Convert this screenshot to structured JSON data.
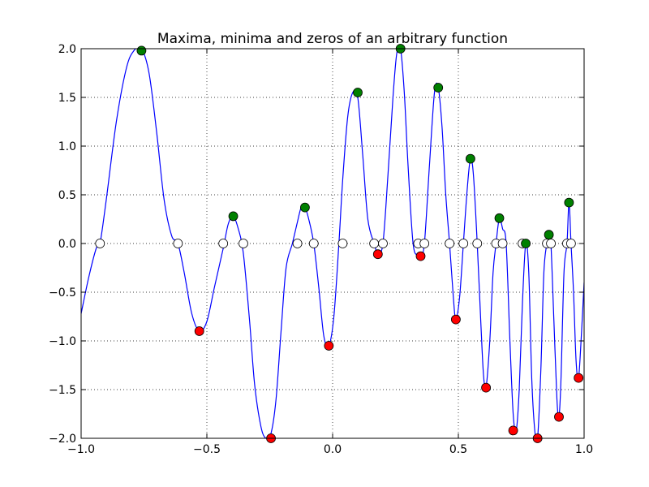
{
  "chart_data": {
    "type": "line",
    "title": "Maxima, minima and zeros of an arbitrary function",
    "xlabel": "",
    "ylabel": "",
    "xlim": [
      -1.0,
      1.0
    ],
    "ylim": [
      -2.0,
      2.0
    ],
    "grid": true,
    "xticks": [
      -1.0,
      -0.5,
      0.0,
      0.5,
      1.0
    ],
    "xtick_labels": [
      "−1.0",
      "−0.5",
      "0.0",
      "0.5",
      "1.0"
    ],
    "yticks": [
      -2.0,
      -1.5,
      -1.0,
      -0.5,
      0.0,
      0.5,
      1.0,
      1.5,
      2.0
    ],
    "ytick_labels": [
      "−2.0",
      "−1.5",
      "−1.0",
      "−0.5",
      "0.0",
      "0.5",
      "1.0",
      "1.5",
      "2.0"
    ],
    "colors": {
      "line": "#0000ff",
      "maxima": "#008000",
      "minima": "#ff0000",
      "zeros": "#ffffff",
      "grid": "#000000",
      "frame": "#000000"
    },
    "series": [
      {
        "x": [
          -1.0,
          -0.97,
          -0.94,
          -0.925,
          -0.9,
          -0.86,
          -0.82,
          -0.79,
          -0.76,
          -0.73,
          -0.7,
          -0.67,
          -0.64,
          -0.615,
          -0.59,
          -0.56,
          -0.53,
          -0.5,
          -0.47,
          -0.435,
          -0.415,
          -0.395,
          -0.375,
          -0.355,
          -0.33,
          -0.31,
          -0.285,
          -0.265,
          -0.245,
          -0.225,
          -0.205,
          -0.185,
          -0.16,
          -0.14,
          -0.125,
          -0.11,
          -0.095,
          -0.075,
          -0.055,
          -0.035,
          -0.015,
          0.005,
          0.025,
          0.04,
          0.06,
          0.08,
          0.1,
          0.12,
          0.14,
          0.165,
          0.18,
          0.2,
          0.22,
          0.24,
          0.255,
          0.27,
          0.285,
          0.3,
          0.32,
          0.34,
          0.35,
          0.365,
          0.385,
          0.405,
          0.42,
          0.435,
          0.45,
          0.465,
          0.48,
          0.49,
          0.505,
          0.52,
          0.535,
          0.548,
          0.56,
          0.575,
          0.59,
          0.6,
          0.61,
          0.625,
          0.638,
          0.65,
          0.663,
          0.676,
          0.69,
          0.705,
          0.718,
          0.73,
          0.742,
          0.755,
          0.768,
          0.78,
          0.792,
          0.805,
          0.815,
          0.828,
          0.84,
          0.852,
          0.86,
          0.868,
          0.88,
          0.892,
          0.9,
          0.908,
          0.92,
          0.932,
          0.94,
          0.948,
          0.958,
          0.968,
          0.978,
          0.99,
          1.0
        ],
        "y": [
          -0.72,
          -0.35,
          -0.05,
          0.0,
          0.45,
          1.25,
          1.8,
          1.98,
          2.0,
          1.75,
          1.15,
          0.45,
          0.08,
          0.0,
          -0.3,
          -0.72,
          -0.9,
          -0.8,
          -0.45,
          -0.05,
          0.2,
          0.28,
          0.15,
          -0.1,
          -0.8,
          -1.45,
          -1.88,
          -2.0,
          -1.95,
          -1.6,
          -0.9,
          -0.25,
          0.0,
          0.22,
          0.37,
          0.37,
          0.25,
          0.0,
          -0.45,
          -0.95,
          -1.05,
          -0.75,
          0.0,
          0.65,
          1.3,
          1.55,
          1.5,
          0.9,
          0.25,
          0.0,
          -0.1,
          0.0,
          0.7,
          1.5,
          1.95,
          2.0,
          1.55,
          0.8,
          0.0,
          -0.12,
          -0.12,
          0.0,
          0.8,
          1.55,
          1.6,
          1.2,
          0.5,
          0.0,
          -0.55,
          -0.78,
          -0.55,
          0.0,
          0.55,
          0.87,
          0.7,
          0.0,
          -0.85,
          -1.35,
          -1.48,
          -1.0,
          -0.3,
          0.0,
          0.26,
          0.15,
          0.0,
          -1.0,
          -1.75,
          -1.92,
          -1.5,
          -0.6,
          0.0,
          -0.3,
          -1.4,
          -1.95,
          -2.0,
          -1.3,
          -0.3,
          0.0,
          0.09,
          0.0,
          -0.8,
          -1.6,
          -1.78,
          -1.4,
          -0.3,
          0.0,
          0.42,
          0.0,
          -0.5,
          -1.2,
          -1.38,
          -0.9,
          -0.4
        ]
      }
    ],
    "maxima": {
      "x": [
        -0.76,
        -0.395,
        -0.11,
        0.1,
        0.27,
        0.42,
        0.548,
        0.663,
        0.768,
        0.86,
        0.94
      ],
      "y": [
        1.98,
        0.28,
        0.37,
        1.55,
        2.0,
        1.6,
        0.87,
        0.26,
        0.0,
        0.09,
        0.42
      ]
    },
    "minima": {
      "x": [
        -0.53,
        -0.245,
        -0.015,
        0.18,
        0.35,
        0.49,
        0.61,
        0.718,
        0.815,
        0.9,
        0.978
      ],
      "y": [
        -0.9,
        -2.0,
        -1.05,
        -0.11,
        -0.13,
        -0.78,
        -1.48,
        -1.92,
        -2.0,
        -1.78,
        -1.38
      ]
    },
    "zeros": {
      "x": [
        -0.925,
        -0.615,
        -0.435,
        -0.355,
        -0.14,
        -0.075,
        0.04,
        0.165,
        0.2,
        0.34,
        0.365,
        0.465,
        0.52,
        0.575,
        0.65,
        0.676,
        0.755,
        0.852,
        0.868,
        0.932,
        0.948
      ],
      "y": [
        0,
        0,
        0,
        0,
        0,
        0,
        0,
        0,
        0,
        0,
        0,
        0,
        0,
        0,
        0,
        0,
        0,
        0,
        0,
        0,
        0
      ]
    }
  }
}
